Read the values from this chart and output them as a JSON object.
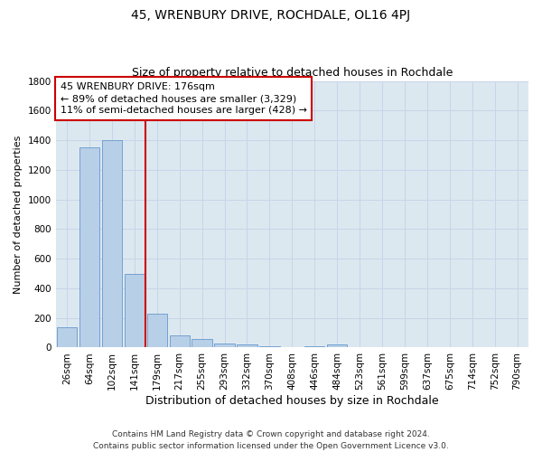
{
  "title": "45, WRENBURY DRIVE, ROCHDALE, OL16 4PJ",
  "subtitle": "Size of property relative to detached houses in Rochdale",
  "xlabel": "Distribution of detached houses by size in Rochdale",
  "ylabel": "Number of detached properties",
  "bar_labels": [
    "26sqm",
    "64sqm",
    "102sqm",
    "141sqm",
    "179sqm",
    "217sqm",
    "255sqm",
    "293sqm",
    "332sqm",
    "370sqm",
    "408sqm",
    "446sqm",
    "484sqm",
    "523sqm",
    "561sqm",
    "599sqm",
    "637sqm",
    "675sqm",
    "714sqm",
    "752sqm",
    "790sqm"
  ],
  "bar_values": [
    140,
    1350,
    1400,
    500,
    230,
    85,
    55,
    30,
    20,
    10,
    5,
    10,
    20,
    0,
    0,
    0,
    0,
    0,
    0,
    0,
    0
  ],
  "bar_color": "#b8cfe8",
  "bar_edge_color": "#6699cc",
  "vline_after_index": 3,
  "vline_color": "#cc0000",
  "annotation_text": "45 WRENBURY DRIVE: 176sqm\n← 89% of detached houses are smaller (3,329)\n11% of semi-detached houses are larger (428) →",
  "annotation_box_color": "#ffffff",
  "annotation_box_edge_color": "#cc0000",
  "ylim": [
    0,
    1800
  ],
  "yticks": [
    0,
    200,
    400,
    600,
    800,
    1000,
    1200,
    1400,
    1600,
    1800
  ],
  "grid_color": "#c8d4e8",
  "bg_color": "#dce8f0",
  "footer_text": "Contains HM Land Registry data © Crown copyright and database right 2024.\nContains public sector information licensed under the Open Government Licence v3.0.",
  "title_fontsize": 10,
  "subtitle_fontsize": 9,
  "xlabel_fontsize": 9,
  "ylabel_fontsize": 8,
  "tick_fontsize": 7.5,
  "footer_fontsize": 6.5,
  "annotation_fontsize": 8
}
